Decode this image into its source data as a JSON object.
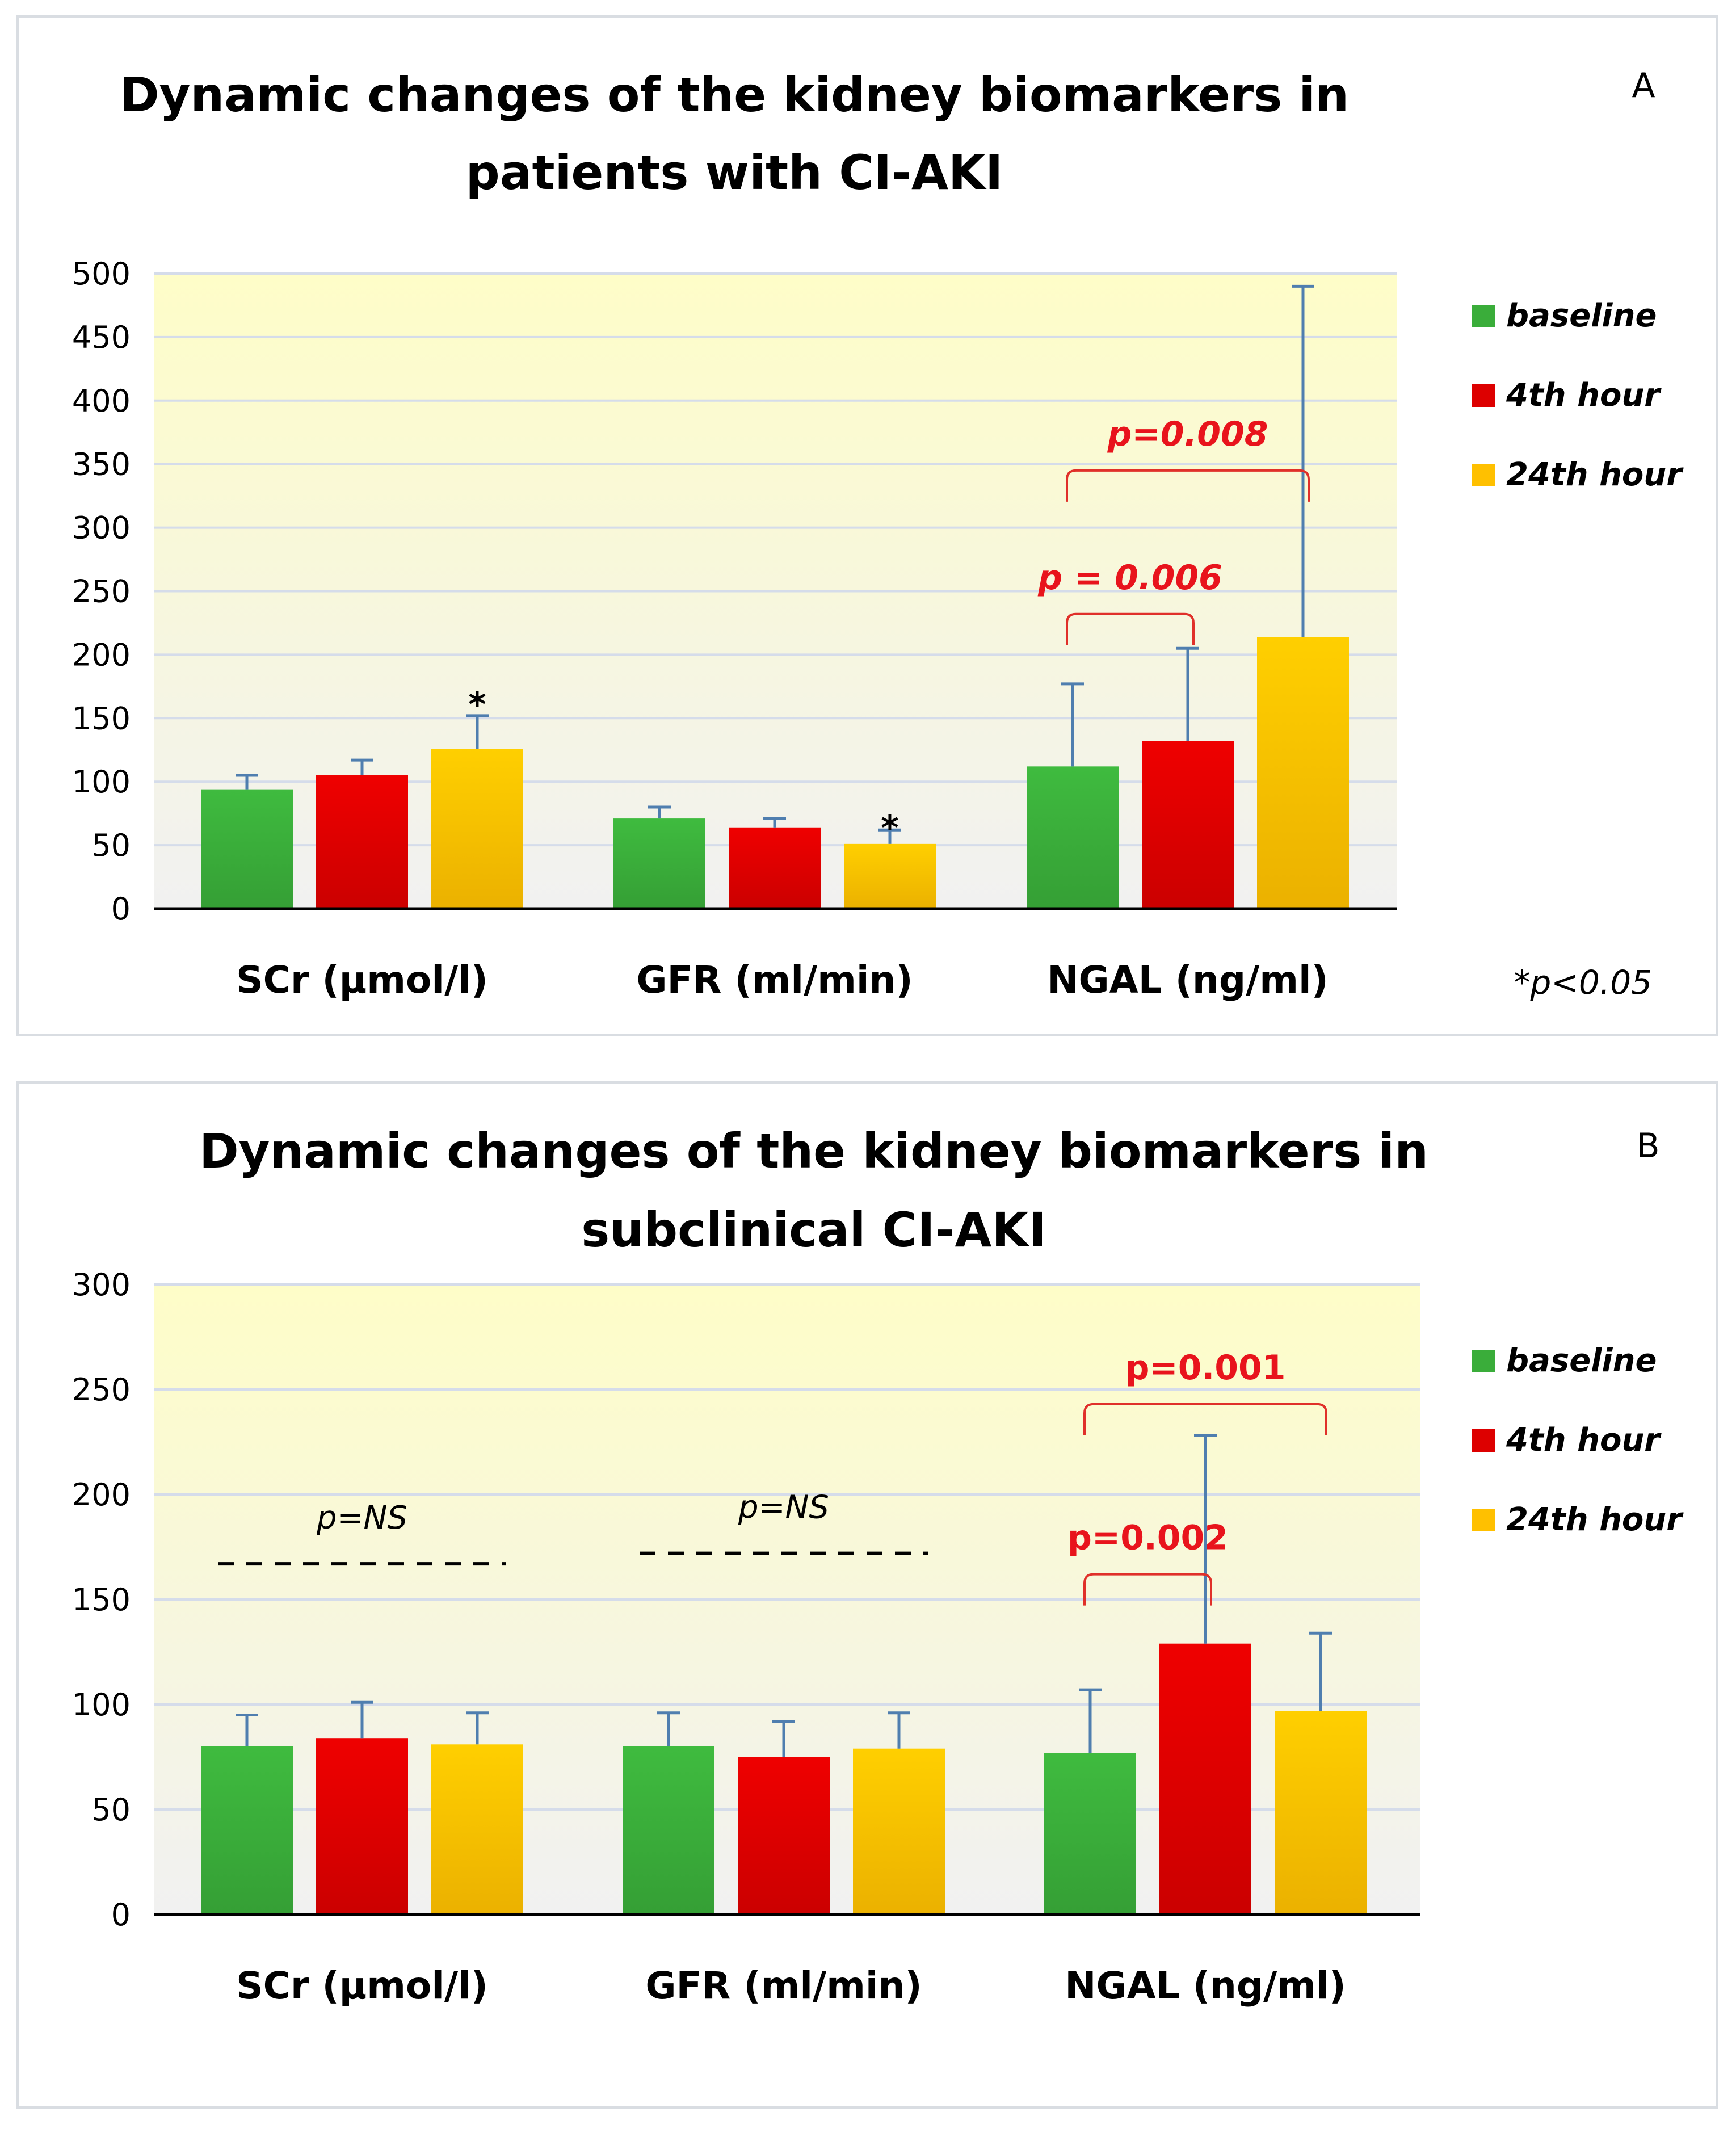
{
  "chart_data": [
    {
      "panel_label": "A",
      "type": "bar",
      "title_lines": [
        "Dynamic changes of the kidney biomarkers in",
        "patients with CI-AKI"
      ],
      "categories": [
        "SCr (µmol/l)",
        "GFR (ml/min)",
        "NGAL (ng/ml)"
      ],
      "series": [
        {
          "name": "baseline",
          "color": "#3aad3a",
          "values": [
            94,
            71,
            112
          ],
          "error": [
            11,
            9,
            65
          ]
        },
        {
          "name": "4th hour",
          "color": "#dd0000",
          "values": [
            105,
            64,
            132
          ],
          "error": [
            12,
            7,
            73
          ]
        },
        {
          "name": "24th hour",
          "color": "#ffc000",
          "values": [
            126,
            51,
            214
          ],
          "error": [
            26,
            11,
            276
          ]
        }
      ],
      "ylim": [
        0,
        500
      ],
      "yticks": [
        0,
        50,
        100,
        150,
        200,
        250,
        300,
        350,
        400,
        450,
        500
      ],
      "grid": true,
      "legend_position": "right",
      "annotations": [
        {
          "kind": "star",
          "text": "*",
          "category": 0,
          "series": 2,
          "y": 165
        },
        {
          "kind": "star",
          "text": "*",
          "category": 1,
          "series": 2,
          "y": 68
        },
        {
          "kind": "bracket",
          "text": "p = 0.006",
          "from_category": 2,
          "from_series": 0,
          "to_category": 2,
          "to_series": 1,
          "y": 232
        },
        {
          "kind": "bracket",
          "text": "p=0.008",
          "from_category": 2,
          "from_series": 0,
          "to_category": 2,
          "to_series": 2,
          "y": 345
        }
      ],
      "footnote": "*p<0.05"
    },
    {
      "panel_label": "B",
      "type": "bar",
      "title_lines": [
        "Dynamic changes of the kidney biomarkers in",
        "subclinical CI-AKI"
      ],
      "categories": [
        "SCr (µmol/l)",
        "GFR (ml/min)",
        "NGAL (ng/ml)"
      ],
      "series": [
        {
          "name": "baseline",
          "color": "#3aad3a",
          "values": [
            80,
            80,
            77
          ],
          "error": [
            15,
            16,
            30
          ]
        },
        {
          "name": "4th hour",
          "color": "#dd0000",
          "values": [
            84,
            75,
            129
          ],
          "error": [
            17,
            17,
            99
          ]
        },
        {
          "name": "24th hour",
          "color": "#ffc000",
          "values": [
            81,
            79,
            97
          ],
          "error": [
            15,
            17,
            37
          ]
        }
      ],
      "ylim": [
        0,
        300
      ],
      "yticks": [
        0,
        50,
        100,
        150,
        200,
        250,
        300
      ],
      "grid": true,
      "legend_position": "right",
      "annotations": [
        {
          "kind": "dashed",
          "text": "p=NS",
          "category": 0,
          "y": 167
        },
        {
          "kind": "dashed",
          "text": "p=NS",
          "category": 1,
          "y": 172
        },
        {
          "kind": "bracket",
          "text": "p=0.002",
          "from_category": 2,
          "from_series": 0,
          "to_category": 2,
          "to_series": 1,
          "y": 162
        },
        {
          "kind": "bracket",
          "text": "p=0.001",
          "from_category": 2,
          "from_series": 0,
          "to_category": 2,
          "to_series": 2,
          "y": 243
        }
      ],
      "footnote": ""
    }
  ]
}
